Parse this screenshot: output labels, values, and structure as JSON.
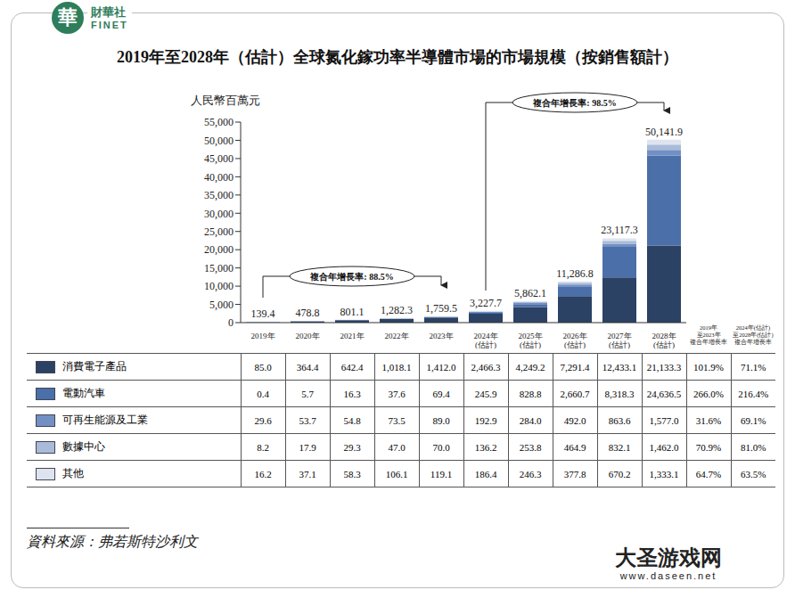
{
  "chart_data": {
    "type": "bar",
    "stacked": true,
    "title": "2019年至2028年（估計）全球氮化鎵功率半導體市場的市場規模（按銷售額計）",
    "y_label": "人民幣百萬元",
    "categories": [
      "2019年",
      "2020年",
      "2021年",
      "2022年",
      "2023年",
      "2024年(估計)",
      "2025年(估計)",
      "2026年(估計)",
      "2027年(估計)",
      "2028年(估計)"
    ],
    "series": [
      {
        "name": "消費電子產品",
        "color": "#2b4264",
        "values": [
          85.0,
          364.4,
          642.4,
          1018.1,
          1412.0,
          2466.3,
          4249.2,
          7291.4,
          12433.1,
          21133.3
        ],
        "value_labels": [
          "85.0",
          "364.4",
          "642.4",
          "1,018.1",
          "1,412.0",
          "2,466.3",
          "4,249.2",
          "7,291.4",
          "12,433.1",
          "21,133.3"
        ],
        "cagr": [
          101.9,
          71.1
        ],
        "cagr_labels": [
          "101.9%",
          "71.1%"
        ]
      },
      {
        "name": "電動汽車",
        "color": "#4b6fa8",
        "values": [
          0.4,
          5.7,
          16.3,
          37.6,
          69.4,
          245.9,
          828.8,
          2660.7,
          8318.3,
          24636.5
        ],
        "value_labels": [
          "0.4",
          "5.7",
          "16.3",
          "37.6",
          "69.4",
          "245.9",
          "828.8",
          "2,660.7",
          "8,318.3",
          "24,636.5"
        ],
        "cagr": [
          266.0,
          216.4
        ],
        "cagr_labels": [
          "266.0%",
          "216.4%"
        ]
      },
      {
        "name": "可再生能源及工業",
        "color": "#7390c4",
        "values": [
          29.6,
          53.7,
          54.8,
          73.5,
          89.0,
          192.9,
          284.0,
          492.0,
          863.6,
          1577.0
        ],
        "value_labels": [
          "29.6",
          "53.7",
          "54.8",
          "73.5",
          "89.0",
          "192.9",
          "284.0",
          "492.0",
          "863.6",
          "1,577.0"
        ],
        "cagr": [
          31.6,
          69.1
        ],
        "cagr_labels": [
          "31.6%",
          "69.1%"
        ]
      },
      {
        "name": "數據中心",
        "color": "#a9bbd9",
        "values": [
          8.2,
          17.9,
          29.3,
          47.0,
          70.0,
          136.2,
          253.8,
          464.9,
          832.1,
          1462.0
        ],
        "value_labels": [
          "8.2",
          "17.9",
          "29.3",
          "47.0",
          "70.0",
          "136.2",
          "253.8",
          "464.9",
          "832.1",
          "1,462.0"
        ],
        "cagr": [
          70.9,
          81.0
        ],
        "cagr_labels": [
          "70.9%",
          "81.0%"
        ]
      },
      {
        "name": "其他",
        "color": "#dde4f0",
        "values": [
          16.2,
          37.1,
          58.3,
          106.1,
          119.1,
          186.4,
          246.3,
          377.8,
          670.2,
          1333.1
        ],
        "value_labels": [
          "16.2",
          "37.1",
          "58.3",
          "106.1",
          "119.1",
          "186.4",
          "246.3",
          "377.8",
          "670.2",
          "1,333.1"
        ],
        "cagr": [
          64.7,
          63.5
        ],
        "cagr_labels": [
          "64.7%",
          "63.5%"
        ]
      }
    ],
    "totals": [
      {
        "value": 139.4,
        "label": "139.4"
      },
      {
        "value": 478.8,
        "label": "478.8"
      },
      {
        "value": 801.1,
        "label": "801.1"
      },
      {
        "value": 1282.3,
        "label": "1,282.3"
      },
      {
        "value": 1759.5,
        "label": "1,759.5"
      },
      {
        "value": 3227.7,
        "label": "3,227.7"
      },
      {
        "value": 5862.1,
        "label": "5,862.1"
      },
      {
        "value": 11286.8,
        "label": "11,286.8"
      },
      {
        "value": 23117.3,
        "label": "23,117.3"
      },
      {
        "value": 50141.9,
        "label": "50,141.9"
      }
    ],
    "cagr_headers": [
      "2019年至2023年複合年增長率",
      "2024年(估計)至2028年(估計)複合年增長率"
    ],
    "annotations": [
      {
        "text": "複合年增長率: 88.5%",
        "from": "2019年",
        "to": "2023年"
      },
      {
        "text": "複合年增長率: 98.5%",
        "from": "2024年(估計)",
        "to": "2028年(估計)"
      }
    ],
    "ylim": [
      0,
      55000
    ],
    "yticks": [
      0,
      {
        "value": 5000,
        "label": "5,000"
      },
      {
        "value": 10000,
        "label": "10,000"
      },
      {
        "value": 15000,
        "label": "15,000"
      },
      {
        "value": 20000,
        "label": "20,000"
      },
      {
        "value": 25000,
        "label": "25,000"
      },
      {
        "value": 30000,
        "label": "30,000"
      },
      {
        "value": 35000,
        "label": "35,000"
      },
      {
        "value": 40000,
        "label": "40,000"
      },
      {
        "value": 45000,
        "label": "45,000"
      },
      {
        "value": 50000,
        "label": "50,000"
      },
      {
        "value": 55000,
        "label": "55,000"
      }
    ],
    "grid": false,
    "source": "資料來源：弗若斯特沙利文",
    "logo": [
      "華",
      "財華社",
      "FINET"
    ],
    "watermark": [
      "大圣游戏网",
      "www.daseen.net"
    ]
  }
}
